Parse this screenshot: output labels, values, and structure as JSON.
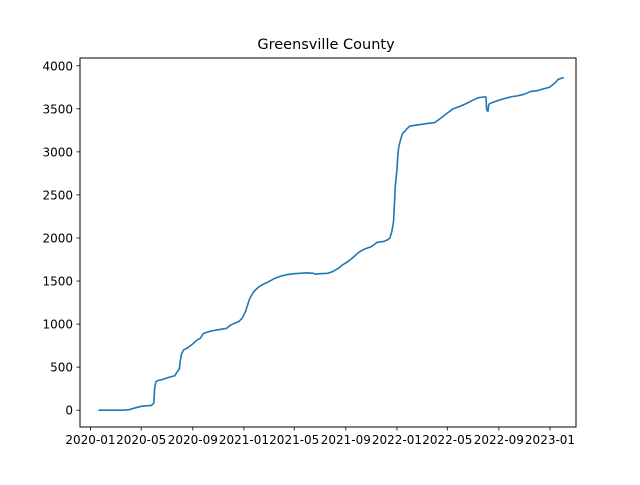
{
  "chart_data": {
    "type": "line",
    "title": "Greensville County",
    "xlabel": "",
    "ylabel": "",
    "grid": false,
    "legend": "none",
    "line_color": "#1f77b4",
    "xlim": [
      "2019-12-07",
      "2023-03-04"
    ],
    "ylim": [
      -195,
      4090
    ],
    "x_ticks": [
      {
        "date": "2020-01-01",
        "label": "2020-01"
      },
      {
        "date": "2020-05-01",
        "label": "2020-05"
      },
      {
        "date": "2020-09-01",
        "label": "2020-09"
      },
      {
        "date": "2021-01-01",
        "label": "2021-01"
      },
      {
        "date": "2021-05-01",
        "label": "2021-05"
      },
      {
        "date": "2021-09-01",
        "label": "2021-09"
      },
      {
        "date": "2022-01-01",
        "label": "2022-01"
      },
      {
        "date": "2022-05-01",
        "label": "2022-05"
      },
      {
        "date": "2022-09-01",
        "label": "2022-09"
      },
      {
        "date": "2023-01-01",
        "label": "2023-01"
      }
    ],
    "y_ticks": [
      {
        "value": 0,
        "label": "0"
      },
      {
        "value": 500,
        "label": "500"
      },
      {
        "value": 1000,
        "label": "1000"
      },
      {
        "value": 1500,
        "label": "1500"
      },
      {
        "value": 2000,
        "label": "2000"
      },
      {
        "value": 2500,
        "label": "2500"
      },
      {
        "value": 3000,
        "label": "3000"
      },
      {
        "value": 3500,
        "label": "3500"
      },
      {
        "value": 4000,
        "label": "4000"
      }
    ],
    "series": [
      {
        "x": [
          "2020-01-22",
          "2020-03-15",
          "2020-04-01",
          "2020-04-15",
          "2020-05-01",
          "2020-05-25",
          "2020-05-31",
          "2020-06-02",
          "2020-06-05",
          "2020-06-10",
          "2020-06-20",
          "2020-07-05",
          "2020-07-20",
          "2020-07-25",
          "2020-07-31",
          "2020-08-02",
          "2020-08-05",
          "2020-08-10",
          "2020-08-20",
          "2020-09-01",
          "2020-09-10",
          "2020-09-20",
          "2020-09-25",
          "2020-10-01",
          "2020-10-15",
          "2020-11-01",
          "2020-11-20",
          "2020-12-01",
          "2020-12-10",
          "2020-12-20",
          "2020-12-28",
          "2021-01-05",
          "2021-01-15",
          "2021-01-25",
          "2021-02-05",
          "2021-02-15",
          "2021-02-28",
          "2021-03-15",
          "2021-04-01",
          "2021-04-15",
          "2021-05-01",
          "2021-05-15",
          "2021-06-01",
          "2021-06-15",
          "2021-06-20",
          "2021-07-01",
          "2021-07-20",
          "2021-08-01",
          "2021-08-15",
          "2021-08-25",
          "2021-09-01",
          "2021-09-15",
          "2021-10-01",
          "2021-10-15",
          "2021-11-01",
          "2021-11-15",
          "2021-12-01",
          "2021-12-10",
          "2021-12-15",
          "2021-12-20",
          "2021-12-24",
          "2021-12-28",
          "2022-01-01",
          "2022-01-03",
          "2022-01-05",
          "2022-01-10",
          "2022-01-15",
          "2022-01-20",
          "2022-01-25",
          "2022-02-01",
          "2022-02-15",
          "2022-03-01",
          "2022-03-15",
          "2022-04-01",
          "2022-04-15",
          "2022-05-01",
          "2022-05-15",
          "2022-06-01",
          "2022-06-15",
          "2022-07-01",
          "2022-07-15",
          "2022-08-01",
          "2022-08-03",
          "2022-08-06",
          "2022-08-08",
          "2022-08-10",
          "2022-08-15",
          "2022-09-01",
          "2022-09-15",
          "2022-10-01",
          "2022-10-15",
          "2022-11-01",
          "2022-11-15",
          "2022-12-01",
          "2022-12-15",
          "2022-12-31",
          "2023-01-05",
          "2023-01-10",
          "2023-01-15",
          "2023-01-20",
          "2023-01-25",
          "2023-02-01"
        ],
        "y": [
          0,
          0,
          5,
          25,
          45,
          55,
          80,
          250,
          330,
          345,
          355,
          380,
          400,
          440,
          480,
          570,
          650,
          700,
          725,
          770,
          810,
          840,
          885,
          900,
          920,
          935,
          950,
          990,
          1010,
          1030,
          1070,
          1150,
          1300,
          1380,
          1430,
          1460,
          1490,
          1530,
          1560,
          1575,
          1585,
          1590,
          1595,
          1590,
          1580,
          1585,
          1590,
          1610,
          1650,
          1690,
          1710,
          1760,
          1830,
          1870,
          1900,
          1950,
          1960,
          1980,
          2000,
          2080,
          2200,
          2600,
          2800,
          2950,
          3050,
          3150,
          3220,
          3240,
          3270,
          3300,
          3310,
          3320,
          3330,
          3340,
          3390,
          3450,
          3500,
          3530,
          3560,
          3600,
          3630,
          3640,
          3490,
          3470,
          3550,
          3560,
          3570,
          3600,
          3620,
          3640,
          3650,
          3670,
          3700,
          3710,
          3730,
          3750,
          3770,
          3790,
          3810,
          3840,
          3850,
          3860
        ]
      }
    ]
  }
}
